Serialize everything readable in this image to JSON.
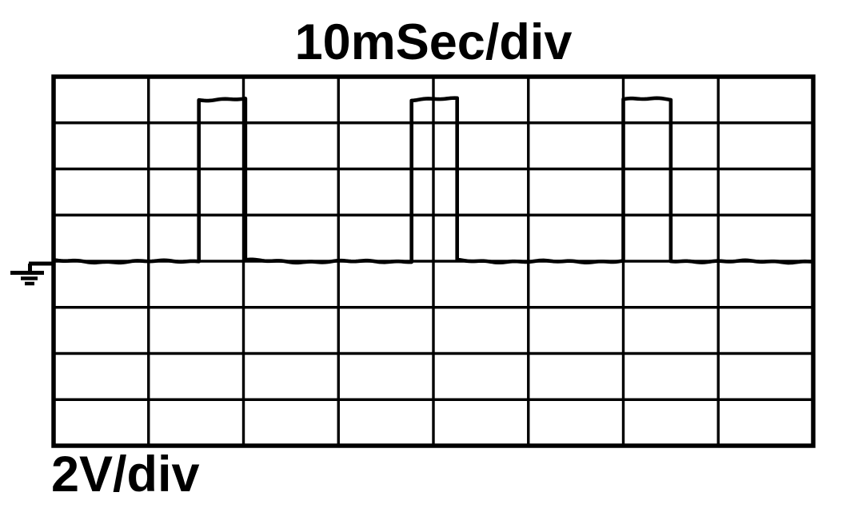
{
  "labels": {
    "time_per_div": "10mSec/div",
    "volts_per_div": "2V/div"
  },
  "icons": {
    "ground_marker": "earth-ground-icon"
  },
  "colors": {
    "background": "#ffffff",
    "foreground": "#000000",
    "trace": "#000000",
    "grid": "#000000"
  },
  "chart_data": {
    "type": "line",
    "title": "10mSec/div",
    "xlabel": "10mSec/div",
    "ylabel": "2V/div",
    "grid": "on",
    "legend": "none",
    "x_axis": {
      "ms_per_div": 10,
      "divisions": 8,
      "range_ms": [
        0,
        80
      ],
      "tick_labels": []
    },
    "y_axis": {
      "volts_per_div": 2,
      "divisions": 8,
      "range_V": [
        -8,
        8
      ],
      "tick_labels": []
    },
    "baseline_V": 0,
    "baseline_at_div_from_top": 4,
    "ground_marker_at_V": 0,
    "pulse_amplitude_V": 7,
    "pulse_width_ms": 5,
    "pulse_period_ms": 22.4,
    "pulses": [
      {
        "start_ms": 15.3,
        "end_ms": 20.2,
        "amplitude_V": 7
      },
      {
        "start_ms": 37.7,
        "end_ms": 42.5,
        "amplitude_V": 7
      },
      {
        "start_ms": 60.0,
        "end_ms": 65.0,
        "amplitude_V": 7
      }
    ],
    "series": [
      {
        "name": "channel-1",
        "points_ms_V": [
          [
            0,
            0
          ],
          [
            15.3,
            0
          ],
          [
            15.3,
            7
          ],
          [
            20.2,
            7
          ],
          [
            20.2,
            0
          ],
          [
            37.7,
            0
          ],
          [
            37.7,
            7
          ],
          [
            42.5,
            7
          ],
          [
            42.5,
            0
          ],
          [
            60.0,
            0
          ],
          [
            60.0,
            7
          ],
          [
            65.0,
            7
          ],
          [
            65.0,
            0
          ],
          [
            80,
            0
          ]
        ]
      }
    ]
  }
}
